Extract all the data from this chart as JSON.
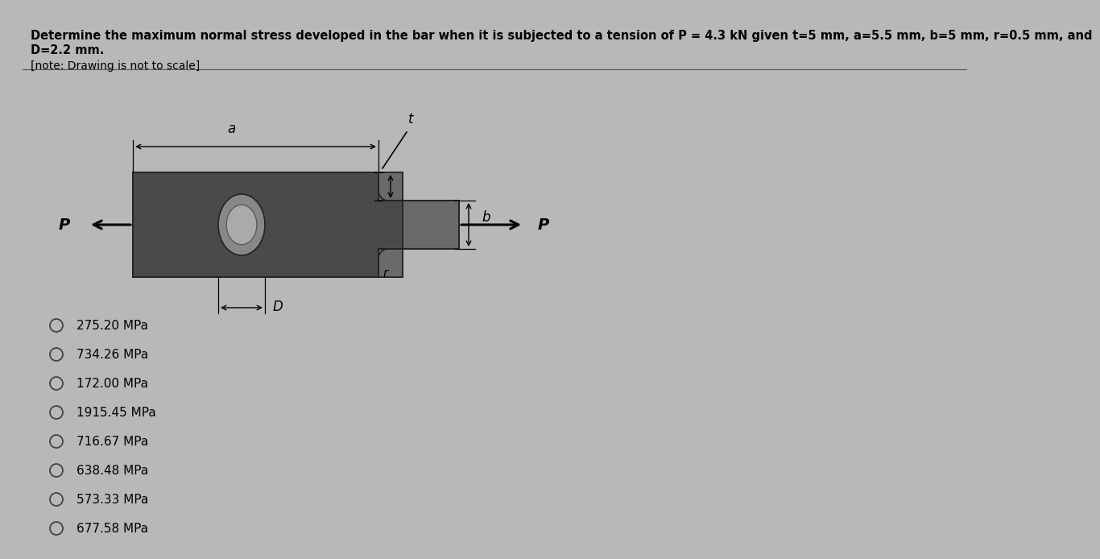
{
  "title_line1": "Determine the maximum normal stress developed in the bar when it is subjected to a tension of P = 4.3 kN given t=5 mm, a=5.5 mm, b=5 mm, r=0.5 mm, and",
  "title_line2": "D=2.2 mm.",
  "note_text": "[note: Drawing is not to scale]",
  "options": [
    "275.20 MPa",
    "734.26 MPa",
    "172.00 MPa",
    "1915.45 MPa",
    "716.67 MPa",
    "638.48 MPa",
    "573.33 MPa",
    "677.58 MPa"
  ],
  "bg_color": "#b8b8b8",
  "bar_dark": "#4a4a4a",
  "bar_mid": "#6a6a6a",
  "bar_light": "#8a8a8a",
  "outline": "#222222",
  "title_fontsize": 10.5,
  "note_fontsize": 10,
  "option_fontsize": 11,
  "label_fontsize": 12
}
